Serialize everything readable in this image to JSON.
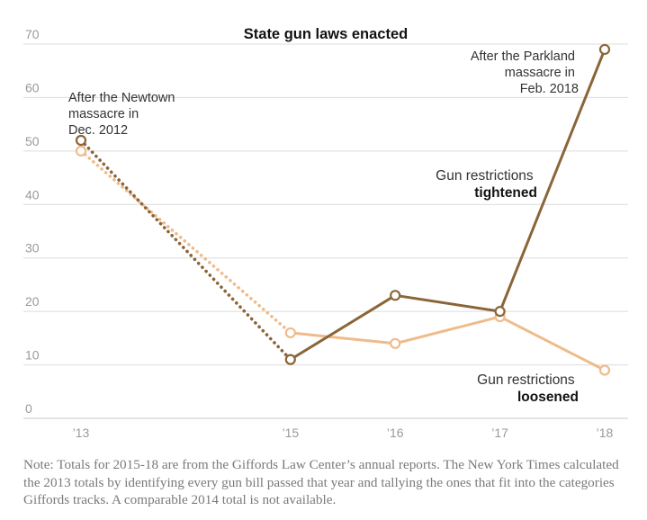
{
  "chart_data": {
    "type": "line",
    "title": "State gun laws enacted",
    "categories": [
      "’13",
      "’15",
      "’16",
      "’17",
      "’18"
    ],
    "x": [
      2013,
      2015,
      2016,
      2017,
      2018
    ],
    "ylim": [
      0,
      70
    ],
    "yticks": [
      0,
      10,
      20,
      30,
      40,
      50,
      60,
      70
    ],
    "xlabel": "",
    "ylabel": "",
    "grid": true,
    "series": [
      {
        "name": "Gun restrictions tightened",
        "label_line1": "Gun restrictions",
        "label_line2": "tightened",
        "color": "#8a6538",
        "values": [
          52,
          11,
          23,
          20,
          69
        ],
        "dotted_segment": [
          2013,
          2015
        ]
      },
      {
        "name": "Gun restrictions loosened",
        "label_line1": "Gun restrictions",
        "label_line2": "loosened",
        "color": "#efbb8b",
        "values": [
          50,
          16,
          14,
          19,
          9
        ],
        "dotted_segment": [
          2013,
          2015
        ]
      }
    ],
    "annotations": [
      {
        "id": "newtown",
        "lines": [
          "After the Newtown",
          "massacre in",
          "Dec. 2012"
        ]
      },
      {
        "id": "parkland",
        "lines": [
          "After the Parkland",
          "massacre in",
          "Feb. 2018"
        ]
      }
    ]
  },
  "note": "Note: Totals for 2015-18 are from the Giffords Law Center’s annual reports. The New York Times calculated the 2013 totals by identifying every gun bill passed that year and tallying the ones that fit into the categories Giffords tracks. A comparable 2014 total is not available."
}
